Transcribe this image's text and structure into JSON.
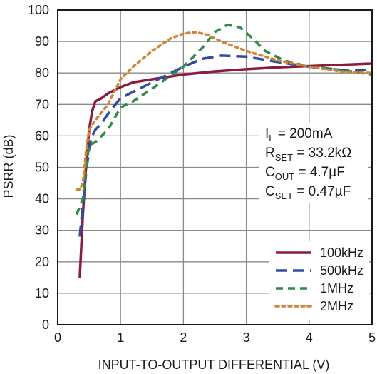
{
  "chart_data": {
    "type": "line",
    "xlabel": "INPUT-TO-OUTPUT DIFFERENTIAL (V)",
    "ylabel": "PSRR (dB)",
    "xlim": [
      0,
      5
    ],
    "ylim": [
      0,
      100
    ],
    "x_ticks": [
      0,
      1,
      2,
      3,
      4,
      5
    ],
    "y_ticks": [
      0,
      10,
      20,
      30,
      40,
      50,
      60,
      70,
      80,
      90,
      100
    ],
    "grid": true,
    "legend_position": "bottom-right",
    "conditions": [
      {
        "main": "I",
        "sub": "L",
        "rest": " = 200mA"
      },
      {
        "main": "R",
        "sub": "SET",
        "rest": " = 33.2kΩ"
      },
      {
        "main": "C",
        "sub": "OUT",
        "rest": " = 4.7µF"
      },
      {
        "main": "C",
        "sub": "SET",
        "rest": " = 0.47µF"
      }
    ],
    "series": [
      {
        "name": "100kHz",
        "color": "#8b1a3c",
        "dash": "solid",
        "points": [
          [
            0.35,
            15
          ],
          [
            0.4,
            35
          ],
          [
            0.45,
            50
          ],
          [
            0.5,
            62
          ],
          [
            0.55,
            68
          ],
          [
            0.6,
            71
          ],
          [
            0.7,
            72
          ],
          [
            0.8,
            73.5
          ],
          [
            1.0,
            75.5
          ],
          [
            1.2,
            77
          ],
          [
            1.5,
            78
          ],
          [
            2.0,
            79.5
          ],
          [
            2.5,
            80.5
          ],
          [
            3.0,
            81.2
          ],
          [
            3.5,
            81.8
          ],
          [
            4.0,
            82.2
          ],
          [
            4.5,
            82.6
          ],
          [
            5.0,
            83
          ]
        ]
      },
      {
        "name": "500kHz",
        "color": "#2f4f9e",
        "dash": "long-dash",
        "points": [
          [
            0.35,
            28
          ],
          [
            0.4,
            38
          ],
          [
            0.45,
            48
          ],
          [
            0.5,
            56
          ],
          [
            0.55,
            60
          ],
          [
            0.6,
            62
          ],
          [
            0.7,
            64
          ],
          [
            0.8,
            67
          ],
          [
            1.0,
            72
          ],
          [
            1.2,
            74
          ],
          [
            1.5,
            77
          ],
          [
            2.0,
            82
          ],
          [
            2.3,
            84.5
          ],
          [
            2.6,
            85.5
          ],
          [
            3.0,
            85.2
          ],
          [
            3.5,
            83.5
          ],
          [
            4.0,
            82
          ],
          [
            4.5,
            81
          ],
          [
            5.0,
            81
          ]
        ]
      },
      {
        "name": "1MHz",
        "color": "#2e8b4a",
        "dash": "dash",
        "points": [
          [
            0.3,
            35
          ],
          [
            0.4,
            40
          ],
          [
            0.45,
            50
          ],
          [
            0.5,
            57
          ],
          [
            0.6,
            58
          ],
          [
            0.7,
            60
          ],
          [
            0.8,
            62
          ],
          [
            1.0,
            69
          ],
          [
            1.2,
            71
          ],
          [
            1.5,
            75
          ],
          [
            2.0,
            82
          ],
          [
            2.3,
            88
          ],
          [
            2.5,
            93
          ],
          [
            2.7,
            95.3
          ],
          [
            2.9,
            94.5
          ],
          [
            3.1,
            91
          ],
          [
            3.3,
            87
          ],
          [
            3.6,
            84
          ],
          [
            4.0,
            82
          ],
          [
            4.5,
            81
          ],
          [
            5.0,
            79.5
          ]
        ]
      },
      {
        "name": "2MHz",
        "color": "#d08538",
        "dash": "dot",
        "points": [
          [
            0.3,
            43
          ],
          [
            0.35,
            43
          ],
          [
            0.4,
            45
          ],
          [
            0.45,
            55
          ],
          [
            0.5,
            62
          ],
          [
            0.6,
            65
          ],
          [
            0.8,
            70
          ],
          [
            1.0,
            78
          ],
          [
            1.2,
            82
          ],
          [
            1.5,
            87
          ],
          [
            1.8,
            91
          ],
          [
            2.0,
            92.5
          ],
          [
            2.2,
            93
          ],
          [
            2.4,
            92
          ],
          [
            2.6,
            90
          ],
          [
            3.0,
            87
          ],
          [
            3.5,
            84
          ],
          [
            4.0,
            82
          ],
          [
            4.5,
            80.5
          ],
          [
            5.0,
            80
          ]
        ]
      }
    ]
  }
}
